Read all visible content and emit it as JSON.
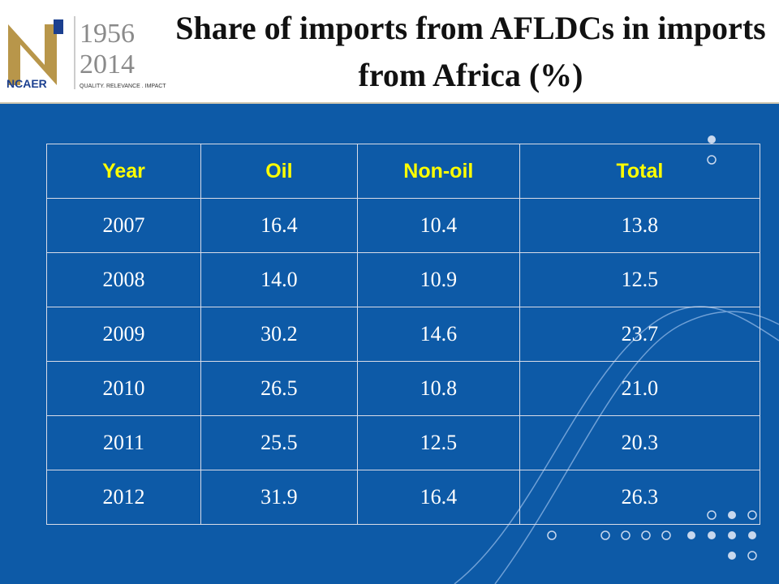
{
  "logo": {
    "years_top": "1956",
    "years_bottom": "2014",
    "name": "NCAER",
    "tagline": "QUALITY. RELEVANCE . IMPACT"
  },
  "header": {
    "title": "Share of imports from AFLDCs in imports from Africa (%)"
  },
  "table": {
    "columns": [
      "Year",
      "Oil",
      "Non-oil",
      "Total"
    ],
    "rows": [
      [
        "2007",
        "16.4",
        "10.4",
        "13.8"
      ],
      [
        "2008",
        "14.0",
        "10.9",
        "12.5"
      ],
      [
        "2009",
        "30.2",
        "14.6",
        "23.7"
      ],
      [
        "2010",
        "26.5",
        "10.8",
        "21.0"
      ],
      [
        "2011",
        "25.5",
        "12.5",
        "20.3"
      ],
      [
        "2012",
        "31.9",
        "16.4",
        "26.3"
      ]
    ]
  }
}
